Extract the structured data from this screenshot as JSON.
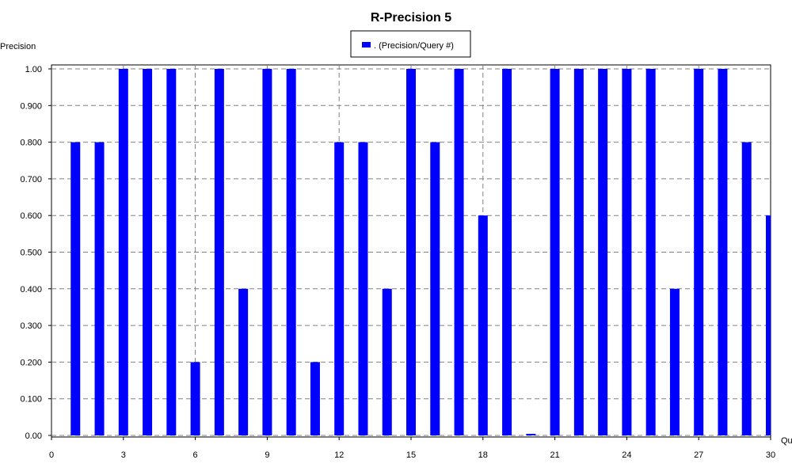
{
  "chart_data": {
    "type": "bar",
    "title": "R-Precision 5",
    "ylabel": "Precision",
    "xlabel": "Qu",
    "legend": {
      "label": ". (Precision/Query #)",
      "placement": "top-center"
    },
    "series": [
      {
        "name": ". (Precision/Query #)",
        "color": "#0000ff",
        "x": [
          1,
          2,
          3,
          4,
          5,
          6,
          7,
          8,
          9,
          10,
          11,
          12,
          13,
          14,
          15,
          16,
          17,
          18,
          19,
          20,
          21,
          22,
          23,
          24,
          25,
          26,
          27,
          28,
          29,
          30
        ],
        "values": [
          0.8,
          0.8,
          1.0,
          1.0,
          1.0,
          0.2,
          1.0,
          0.4,
          1.0,
          1.0,
          0.2,
          0.8,
          0.8,
          0.4,
          1.0,
          0.8,
          1.0,
          0.6,
          1.0,
          0.0,
          1.0,
          1.0,
          1.0,
          1.0,
          1.0,
          0.4,
          1.0,
          1.0,
          0.8,
          0.6
        ]
      }
    ],
    "xlim": [
      0,
      30
    ],
    "ylim": [
      0,
      1.0
    ],
    "x_ticks": [
      "0",
      "3",
      "6",
      "9",
      "12",
      "15",
      "18",
      "21",
      "24",
      "27",
      "30"
    ],
    "y_ticks": [
      "0.00",
      "0.100",
      "0.200",
      "0.300",
      "0.400",
      "0.500",
      "0.600",
      "0.700",
      "0.800",
      "0.900",
      "1.00"
    ],
    "grid": true
  }
}
